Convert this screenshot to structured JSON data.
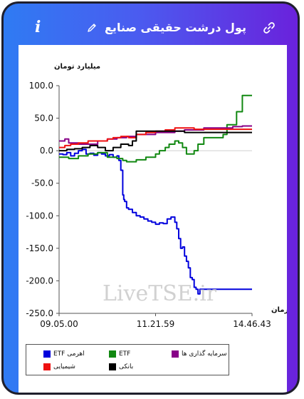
{
  "header": {
    "title": "پول درشت حقیقی صنایع",
    "info_icon": "i"
  },
  "icons": {
    "info": "info-icon",
    "edit": "pencil-icon",
    "link": "link-icon"
  },
  "colors": {
    "gradient_start": "#2f7bf3",
    "gradient_end": "#6a22dc",
    "border": "#1f1f2c"
  },
  "watermark": "LiveTSE.ir",
  "chart_data": {
    "type": "line",
    "ylabel": "میلیارد تومان",
    "xlabel": "زمان",
    "ylim": [
      -250,
      100
    ],
    "yticks": [
      "100.0",
      "50.0",
      "0.0",
      "-50.0",
      "-100.0",
      "-150.0",
      "-200.0",
      "-250.0"
    ],
    "ytick_values": [
      100,
      50,
      0,
      -50,
      -100,
      -150,
      -200,
      -250
    ],
    "xticks": [
      "09.05.00",
      "11.21.59",
      "14.46.43"
    ],
    "xtick_values": [
      0,
      0.5,
      1
    ],
    "grid": "zero-line only",
    "legend_position": "bottom",
    "series": [
      {
        "name": "اهرمی ETF",
        "color": "#0000dd",
        "x": [
          0,
          0.02,
          0.04,
          0.06,
          0.08,
          0.1,
          0.12,
          0.14,
          0.16,
          0.18,
          0.2,
          0.22,
          0.24,
          0.26,
          0.28,
          0.3,
          0.31,
          0.32,
          0.33,
          0.335,
          0.34,
          0.35,
          0.36,
          0.38,
          0.4,
          0.42,
          0.44,
          0.46,
          0.48,
          0.5,
          0.52,
          0.54,
          0.56,
          0.58,
          0.6,
          0.61,
          0.62,
          0.63,
          0.64,
          0.65,
          0.66,
          0.67,
          0.68,
          0.69,
          0.7,
          0.71,
          0.72,
          0.73,
          0.74,
          0.75,
          0.8,
          0.9,
          1.0
        ],
        "y": [
          -5,
          -6,
          -3,
          -8,
          -4,
          0,
          2,
          -5,
          -4,
          -7,
          -3,
          -5,
          -8,
          -6,
          -10,
          -8,
          -15,
          -30,
          -68,
          -75,
          -78,
          -88,
          -90,
          -95,
          -100,
          -102,
          -105,
          -108,
          -110,
          -113,
          -111,
          -112,
          -105,
          -102,
          -110,
          -120,
          -135,
          -150,
          -148,
          -162,
          -170,
          -180,
          -195,
          -198,
          -210,
          -213,
          -220,
          -213,
          -213,
          -213,
          -213,
          -213,
          -213
        ]
      },
      {
        "name": "ETF",
        "color": "#118811",
        "x": [
          0,
          0.05,
          0.1,
          0.15,
          0.2,
          0.25,
          0.3,
          0.33,
          0.35,
          0.4,
          0.45,
          0.5,
          0.52,
          0.55,
          0.57,
          0.6,
          0.62,
          0.64,
          0.66,
          0.68,
          0.7,
          0.72,
          0.75,
          0.8,
          0.85,
          0.87,
          0.9,
          0.92,
          0.95,
          1.0
        ],
        "y": [
          -10,
          -12,
          -8,
          -5,
          -3,
          -10,
          -12,
          -15,
          -17,
          -14,
          -10,
          -5,
          0,
          5,
          10,
          15,
          12,
          5,
          -5,
          -5,
          0,
          10,
          20,
          20,
          25,
          40,
          40,
          60,
          85,
          85
        ]
      },
      {
        "name": "سرمایه گذاری ها",
        "color": "#880088",
        "x": [
          0,
          0.03,
          0.05,
          0.1,
          0.15,
          0.2,
          0.25,
          0.3,
          0.35,
          0.4,
          0.45,
          0.5,
          0.55,
          0.6,
          0.65,
          0.7,
          0.75,
          0.8,
          0.85,
          0.9,
          0.95,
          1.0
        ],
        "y": [
          15,
          18,
          12,
          10,
          10,
          15,
          18,
          20,
          22,
          25,
          25,
          28,
          28,
          30,
          32,
          32,
          35,
          35,
          35,
          37,
          38,
          38
        ]
      },
      {
        "name": "شیمیایی",
        "color": "#ee1111",
        "x": [
          0,
          0.03,
          0.06,
          0.1,
          0.15,
          0.2,
          0.25,
          0.28,
          0.32,
          0.36,
          0.4,
          0.45,
          0.5,
          0.55,
          0.6,
          0.65,
          0.7,
          0.75,
          0.8,
          0.85,
          0.9,
          0.95,
          1.0
        ],
        "y": [
          5,
          8,
          10,
          12,
          15,
          15,
          18,
          20,
          22,
          20,
          25,
          28,
          30,
          32,
          35,
          35,
          33,
          33,
          33,
          33,
          33,
          33,
          33
        ]
      },
      {
        "name": "بانکی",
        "color": "#000000",
        "x": [
          0,
          0.04,
          0.08,
          0.12,
          0.16,
          0.2,
          0.24,
          0.28,
          0.32,
          0.36,
          0.38,
          0.4,
          0.45,
          0.5,
          0.55,
          0.6,
          0.65,
          0.7,
          0.75,
          0.8,
          0.85,
          0.9,
          0.95,
          1.0
        ],
        "y": [
          0,
          2,
          3,
          5,
          8,
          5,
          0,
          5,
          10,
          8,
          15,
          30,
          30,
          30,
          30,
          30,
          28,
          28,
          28,
          28,
          28,
          28,
          28,
          28
        ]
      }
    ]
  }
}
